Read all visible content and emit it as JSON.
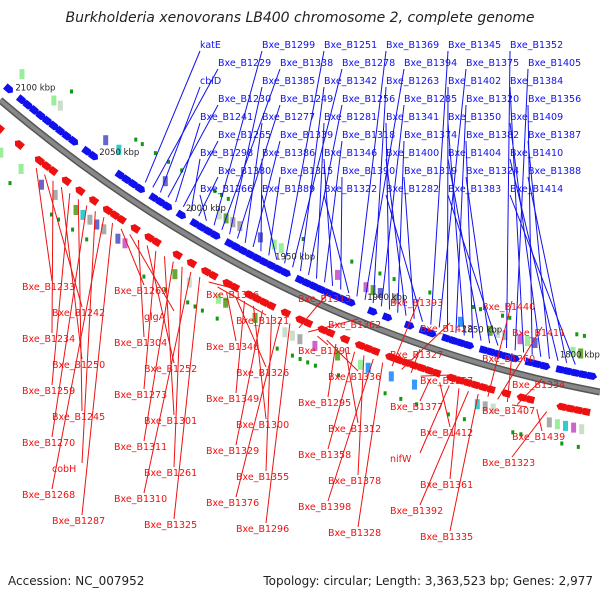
{
  "title": "Burkholderia xenovorans LB400 chromosome 2, complete genome",
  "footer": {
    "accession": "Accession: NC_007952",
    "summary": "Topology: circular; Length: 3,363,523 bp; Genes: 2,977"
  },
  "colors": {
    "forward": "#1111ee",
    "reverse": "#ee1111",
    "axis": "#888888"
  },
  "ticks": [
    {
      "label": "2100 kbp"
    },
    {
      "label": "2050 kbp"
    },
    {
      "label": "2000 kbp"
    },
    {
      "label": "1950 kbp"
    },
    {
      "label": "1900 kbp"
    },
    {
      "label": "1850 kbp"
    },
    {
      "label": "1800 kbp"
    }
  ],
  "forward_labels": [
    "katE",
    "Bxe_B1229",
    "cbiD",
    "Bxe_B1230",
    "Bxe_B1241",
    "Bxe_B1265",
    "Bxe_B1298",
    "Bxe_B1380",
    "Bxe_B1266",
    "Bxe_B1299",
    "Bxe_B1338",
    "Bxe_B1385",
    "Bxe_B1249",
    "Bxe_B1277",
    "Bxe_B1339",
    "Bxe_B1386",
    "Bxe_B1315",
    "Bxe_B1389",
    "Bxe_B1251",
    "Bxe_B1278",
    "Bxe_B1342",
    "Bxe_B1256",
    "Bxe_B1281",
    "Bxe_B1318",
    "Bxe_B1346",
    "Bxe_B1390",
    "Bxe_B1322",
    "Bxe_B1369",
    "Bxe_B1394",
    "Bxe_B1263",
    "Bxe_B1285",
    "Bxe_B1341",
    "Bxe_B1374",
    "Bxe_B1400",
    "Bxe_B1319",
    "Bxe_B1282",
    "Bxe_B1345",
    "Bxe_B1375",
    "Bxe_B1402",
    "Bxe_B1320",
    "Bxe_B1350",
    "Bxe_B1382",
    "Bxe_B1404",
    "Bxe_B1324",
    "Bxe_B1383",
    "Bxe_B1352",
    "Bxe_B1405",
    "Bxe_B1384",
    "Bxe_B1356",
    "Bxe_B1409",
    "Bxe_B1387",
    "Bxe_B1410",
    "Bxe_B1388",
    "Bxe_B1414"
  ],
  "reverse_labels": [
    "Bxe_B1233",
    "Bxe_B1242",
    "Bxe_B1234",
    "Bxe_B1250",
    "Bxe_B1259",
    "Bxe_B1245",
    "Bxe_B1270",
    "cobH",
    "Bxe_B1268",
    "Bxe_B1287",
    "Bxe_B1269",
    "glgA",
    "Bxe_B1304",
    "Bxe_B1252",
    "Bxe_B1273",
    "Bxe_B1301",
    "Bxe_B1311",
    "Bxe_B1261",
    "Bxe_B1310",
    "Bxe_B1325",
    "Bxe_B1306",
    "Bxe_B1321",
    "Bxe_B1340",
    "Bxe_B1326",
    "Bxe_B1349",
    "Bxe_B1300",
    "Bxe_B1329",
    "Bxe_B1355",
    "Bxe_B1376",
    "Bxe_B1296",
    "Bxe_B1313",
    "Bxe_B1362",
    "Bxe_B1391",
    "Bxe_B1336",
    "Bxe_B1295",
    "Bxe_B1312",
    "Bxe_B1358",
    "Bxe_B1378",
    "Bxe_B1398",
    "Bxe_B1328",
    "Bxe_B1393",
    "Bxe_B1422",
    "Bxe_B1327",
    "Bxe_B1357",
    "Bxe_B1377",
    "Bxe_B1412",
    "nifW",
    "Bxe_B1361",
    "Bxe_B1392",
    "Bxe_B1335",
    "Bxe_B1440",
    "Bxe_B1411",
    "Bxe_B1360",
    "Bxe_B1334",
    "Bxe_B1407",
    "Bxe_B1439",
    "Bxe_B1323"
  ]
}
